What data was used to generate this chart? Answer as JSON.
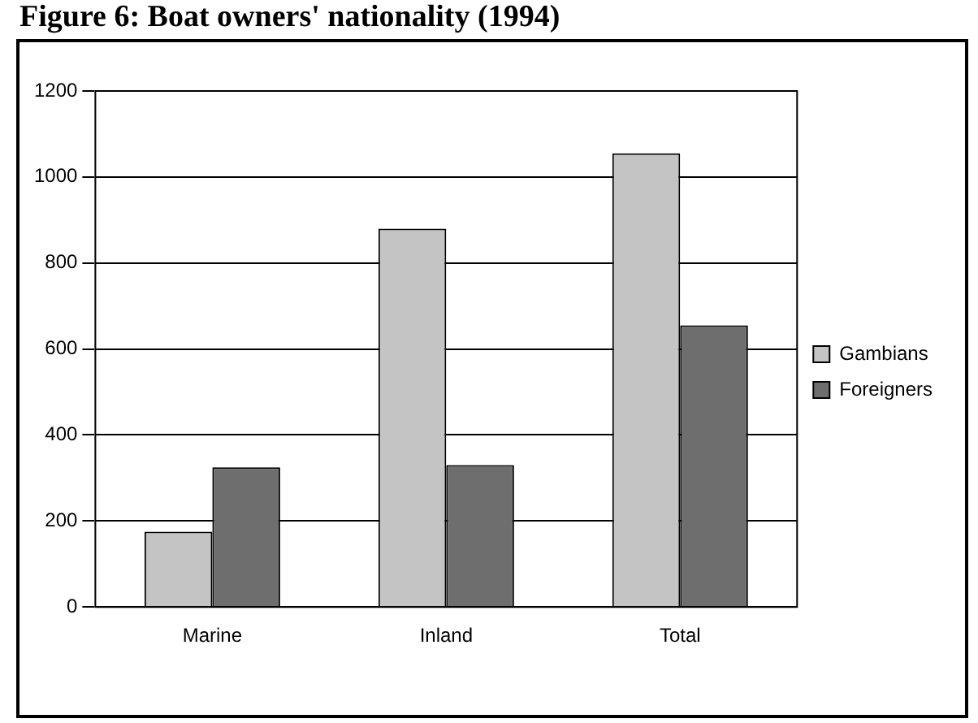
{
  "chart_data": {
    "type": "bar",
    "title": "Figure 6: Boat owners' nationality (1994)",
    "categories": [
      "Marine",
      "Inland",
      "Total"
    ],
    "series": [
      {
        "name": "Gambians",
        "color": "#c4c4c4",
        "values": [
          175,
          880,
          1055
        ]
      },
      {
        "name": "Foreigners",
        "color": "#6e6e6e",
        "values": [
          325,
          330,
          655
        ]
      }
    ],
    "ylim": [
      0,
      1200
    ],
    "yticks": [
      0,
      200,
      400,
      600,
      800,
      1000,
      1200
    ],
    "grid": "y",
    "legend": "right"
  }
}
